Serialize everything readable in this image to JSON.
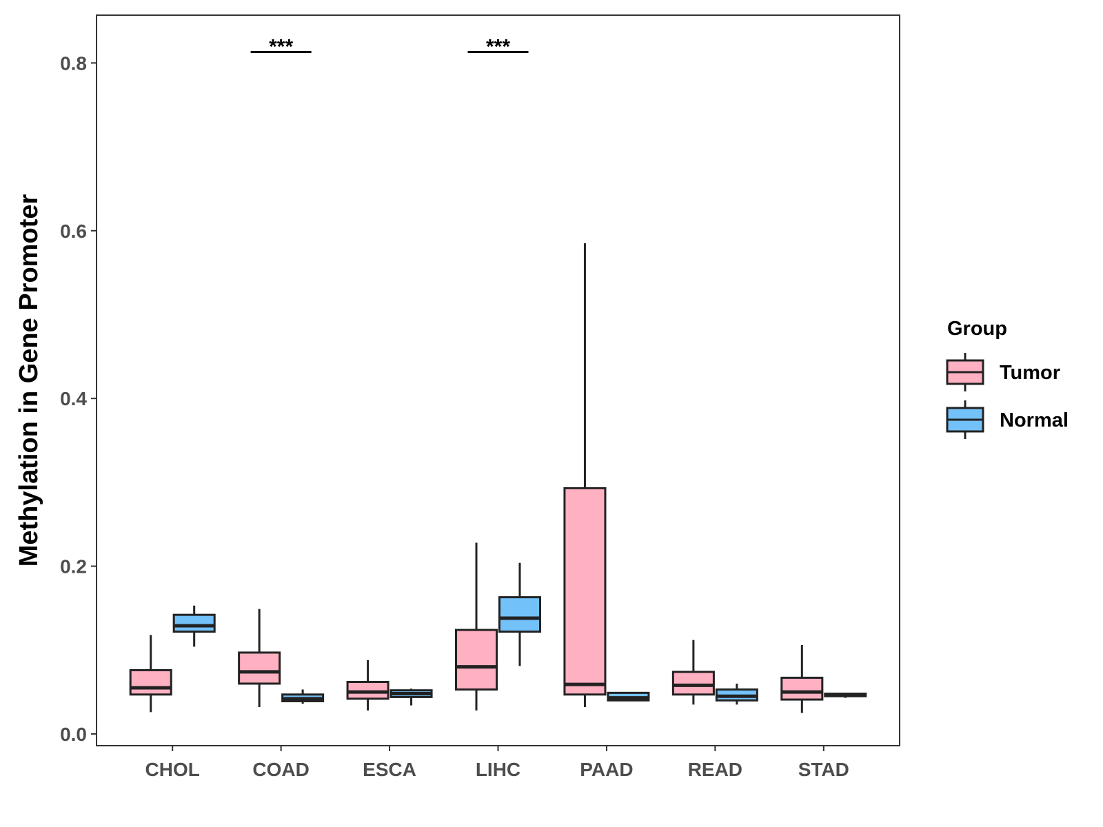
{
  "chart_data": {
    "type": "boxplot",
    "title": "",
    "xlabel": "",
    "ylabel": "Methylation in Gene Promoter",
    "ylim": [
      -0.014,
      0.857
    ],
    "yticks": [
      0.0,
      0.2,
      0.4,
      0.6,
      0.8
    ],
    "ytick_labels": [
      "0.0",
      "0.2",
      "0.4",
      "0.6",
      "0.8"
    ],
    "categories": [
      "CHOL",
      "COAD",
      "ESCA",
      "LIHC",
      "PAAD",
      "READ",
      "STAD"
    ],
    "legend": {
      "title": "Group",
      "position": "right",
      "entries": [
        {
          "name": "Tumor",
          "color": "#FFB0C1"
        },
        {
          "name": "Normal",
          "color": "#73C1F9"
        }
      ]
    },
    "series": [
      {
        "name": "Tumor",
        "color": "#FFB0C1",
        "boxes": [
          {
            "category": "CHOL",
            "whisker_low": 0.026,
            "q1": 0.047,
            "median": 0.055,
            "q3": 0.076,
            "whisker_high": 0.118
          },
          {
            "category": "COAD",
            "whisker_low": 0.032,
            "q1": 0.06,
            "median": 0.074,
            "q3": 0.097,
            "whisker_high": 0.149
          },
          {
            "category": "ESCA",
            "whisker_low": 0.028,
            "q1": 0.042,
            "median": 0.05,
            "q3": 0.062,
            "whisker_high": 0.088
          },
          {
            "category": "LIHC",
            "whisker_low": 0.028,
            "q1": 0.053,
            "median": 0.08,
            "q3": 0.124,
            "whisker_high": 0.228
          },
          {
            "category": "PAAD",
            "whisker_low": 0.032,
            "q1": 0.047,
            "median": 0.059,
            "q3": 0.293,
            "whisker_high": 0.585
          },
          {
            "category": "READ",
            "whisker_low": 0.035,
            "q1": 0.047,
            "median": 0.058,
            "q3": 0.074,
            "whisker_high": 0.112
          },
          {
            "category": "STAD",
            "whisker_low": 0.025,
            "q1": 0.041,
            "median": 0.05,
            "q3": 0.067,
            "whisker_high": 0.106
          }
        ]
      },
      {
        "name": "Normal",
        "color": "#73C1F9",
        "boxes": [
          {
            "category": "CHOL",
            "whisker_low": 0.104,
            "q1": 0.122,
            "median": 0.129,
            "q3": 0.142,
            "whisker_high": 0.153
          },
          {
            "category": "COAD",
            "whisker_low": 0.036,
            "q1": 0.039,
            "median": 0.042,
            "q3": 0.047,
            "whisker_high": 0.053
          },
          {
            "category": "ESCA",
            "whisker_low": 0.034,
            "q1": 0.044,
            "median": 0.048,
            "q3": 0.052,
            "whisker_high": 0.054
          },
          {
            "category": "LIHC",
            "whisker_low": 0.081,
            "q1": 0.122,
            "median": 0.138,
            "q3": 0.163,
            "whisker_high": 0.204
          },
          {
            "category": "PAAD",
            "whisker_low": 0.039,
            "q1": 0.04,
            "median": 0.043,
            "q3": 0.049,
            "whisker_high": 0.05
          },
          {
            "category": "READ",
            "whisker_low": 0.035,
            "q1": 0.04,
            "median": 0.045,
            "q3": 0.053,
            "whisker_high": 0.06
          },
          {
            "category": "STAD",
            "whisker_low": 0.043,
            "q1": 0.045,
            "median": 0.047,
            "q3": 0.048,
            "whisker_high": 0.049
          }
        ]
      }
    ],
    "annotations": [
      {
        "category": "COAD",
        "text": "***",
        "y": 0.813
      },
      {
        "category": "LIHC",
        "text": "***",
        "y": 0.813
      }
    ]
  }
}
